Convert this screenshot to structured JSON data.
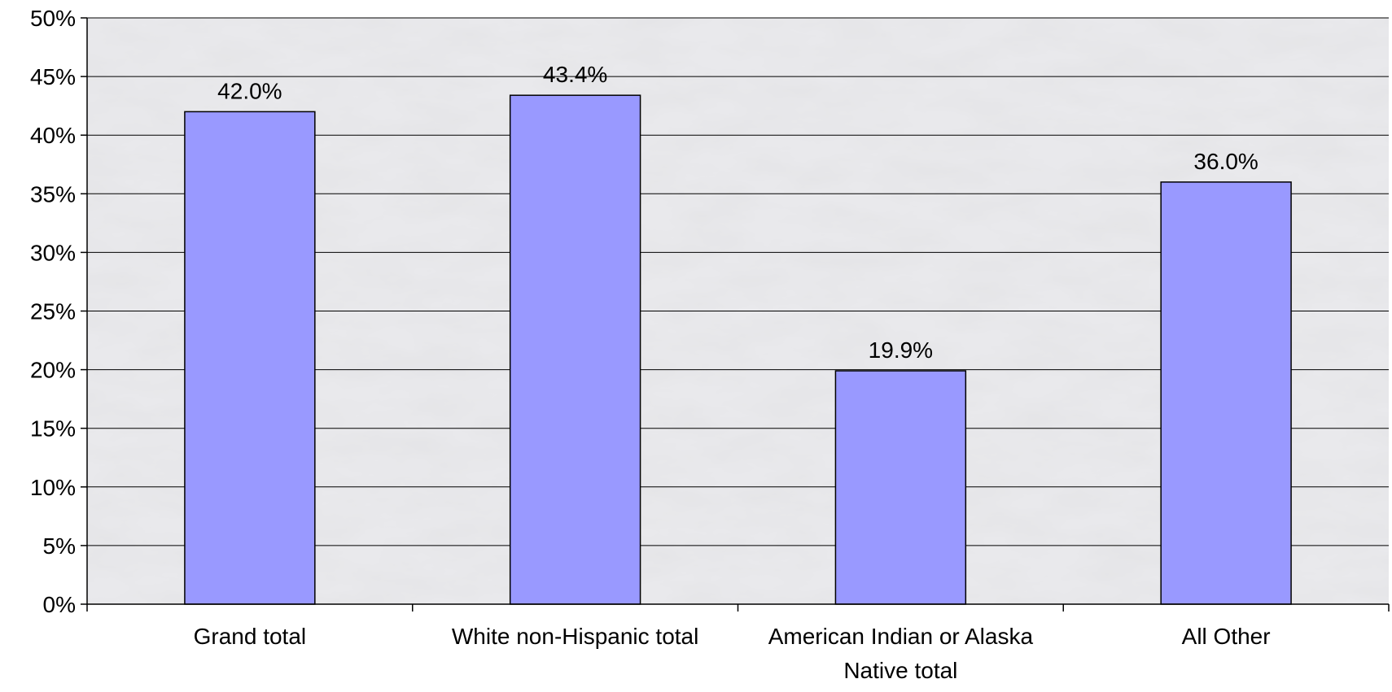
{
  "chart_data": {
    "type": "bar",
    "title": "",
    "xlabel": "",
    "ylabel": "",
    "categories": [
      [
        "Grand total"
      ],
      [
        "White non-Hispanic total"
      ],
      [
        "American Indian or Alaska",
        "Native total"
      ],
      [
        "All Other"
      ]
    ],
    "values": [
      42.0,
      43.4,
      19.9,
      36.0
    ],
    "data_labels": [
      "42.0%",
      "43.4%",
      "19.9%",
      "36.0%"
    ],
    "ylim": [
      0,
      50
    ],
    "ytick_values": [
      0,
      5,
      10,
      15,
      20,
      25,
      30,
      35,
      40,
      45,
      50
    ],
    "ytick_labels": [
      "0%",
      "5%",
      "10%",
      "15%",
      "20%",
      "25%",
      "30%",
      "35%",
      "40%",
      "45%",
      "50%"
    ],
    "grid": true,
    "legend": "none",
    "bar_color": "#9999ff",
    "plot_background": "marble-gray"
  }
}
